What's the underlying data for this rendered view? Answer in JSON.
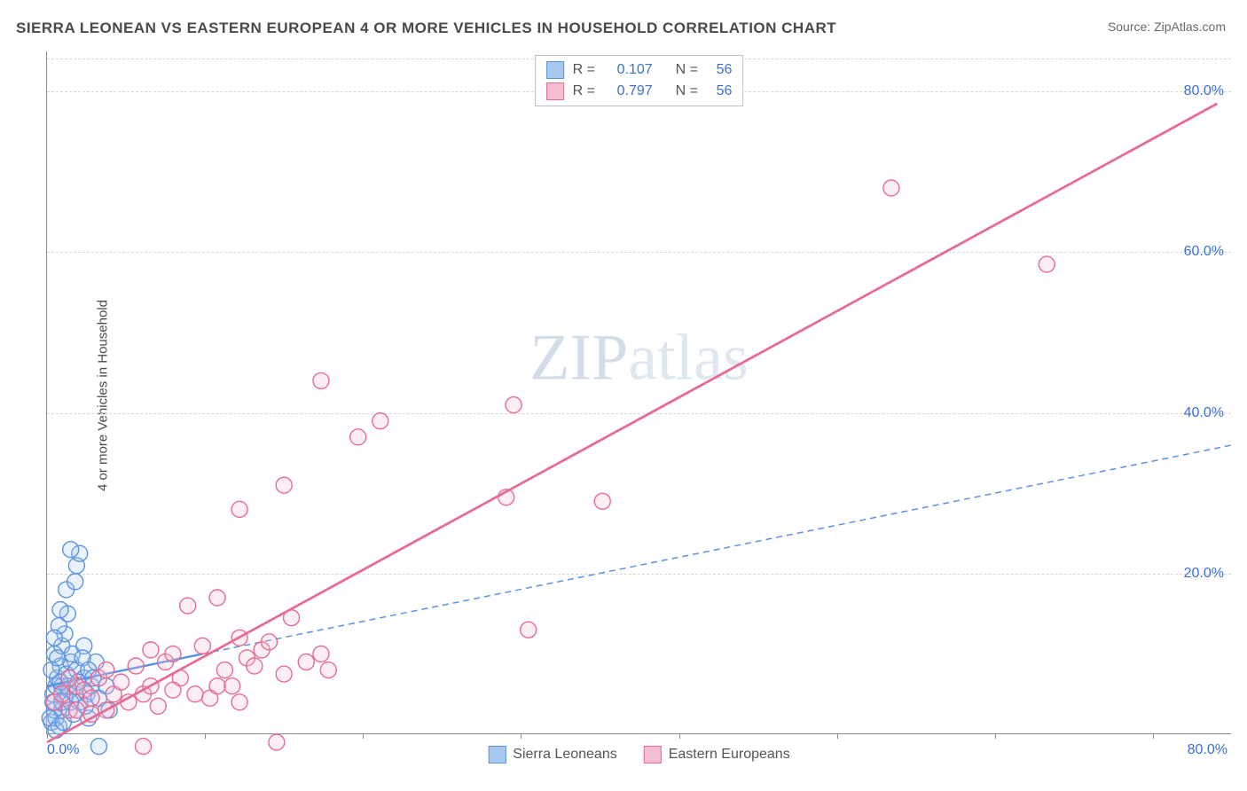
{
  "title": "SIERRA LEONEAN VS EASTERN EUROPEAN 4 OR MORE VEHICLES IN HOUSEHOLD CORRELATION CHART",
  "source_label": "Source:",
  "source_value": "ZipAtlas.com",
  "ylabel": "4 or more Vehicles in Household",
  "watermark_a": "ZIP",
  "watermark_b": "atlas",
  "chart": {
    "type": "scatter",
    "xlim": [
      0,
      80
    ],
    "ylim": [
      0,
      85
    ],
    "x_origin_label": "0.0%",
    "x_max_label": "80.0%",
    "y_ticks": [
      20,
      40,
      60,
      80
    ],
    "y_tick_labels": [
      "20.0%",
      "40.0%",
      "60.0%",
      "80.0%"
    ],
    "x_minor_ticks": [
      0,
      10.67,
      21.33,
      32,
      42.67,
      53.33,
      64,
      74.67
    ],
    "grid_color": "#d8d8d8",
    "axis_color": "#888888",
    "background_color": "#ffffff",
    "tick_label_color": "#3b6fd6",
    "title_color": "#4a4a4a",
    "title_fontsize": 17,
    "label_fontsize": 15,
    "tick_fontsize": 16,
    "marker_radius": 9,
    "marker_fill_opacity": 0.25,
    "marker_stroke_width": 1.4,
    "series": [
      {
        "name": "Sierra Leoneans",
        "color_stroke": "#5a93e0",
        "color_fill": "#a9c8f0",
        "r": 0.107,
        "n": 56,
        "trend": {
          "x1": 0,
          "y1": 6,
          "x2": 10.5,
          "y2": 10,
          "extend_x2": 80,
          "extend_y2": 36,
          "solid_width": 2.5,
          "dash_pattern": "7 5",
          "dash_width": 1.5
        },
        "points": [
          [
            0.3,
            1.5
          ],
          [
            0.6,
            2
          ],
          [
            0.5,
            3
          ],
          [
            0.8,
            1
          ],
          [
            0.4,
            5
          ],
          [
            0.6,
            6
          ],
          [
            1.0,
            3
          ],
          [
            1.2,
            4.5
          ],
          [
            0.7,
            7
          ],
          [
            0.9,
            8.5
          ],
          [
            1.0,
            6
          ],
          [
            1.5,
            5.5
          ],
          [
            1.3,
            7.5
          ],
          [
            1.6,
            9
          ],
          [
            0.5,
            10
          ],
          [
            1.0,
            11
          ],
          [
            1.2,
            12.5
          ],
          [
            0.8,
            13.5
          ],
          [
            1.4,
            15
          ],
          [
            0.9,
            15.5
          ],
          [
            1.3,
            18
          ],
          [
            1.9,
            19
          ],
          [
            2.0,
            21
          ],
          [
            2.2,
            22.5
          ],
          [
            1.6,
            23
          ],
          [
            1.7,
            10
          ],
          [
            2.0,
            8
          ],
          [
            2.5,
            7
          ],
          [
            2.7,
            5
          ],
          [
            3.0,
            6
          ],
          [
            3.3,
            9
          ],
          [
            3.5,
            4.5
          ],
          [
            4.0,
            6
          ],
          [
            4.2,
            3
          ],
          [
            2.8,
            2
          ],
          [
            0.4,
            4
          ],
          [
            0.2,
            2
          ],
          [
            0.6,
            0.5
          ],
          [
            1.1,
            1.5
          ],
          [
            1.8,
            2.5
          ],
          [
            2.2,
            4
          ],
          [
            2.5,
            11
          ],
          [
            0.3,
            8
          ],
          [
            0.7,
            9.5
          ],
          [
            1.0,
            4
          ],
          [
            1.4,
            6
          ],
          [
            1.6,
            4
          ],
          [
            1.9,
            5
          ],
          [
            2.1,
            6.5
          ],
          [
            2.4,
            9.5
          ],
          [
            2.6,
            3.5
          ],
          [
            2.8,
            8
          ],
          [
            3.1,
            7
          ],
          [
            0.5,
            12
          ],
          [
            0.9,
            6.5
          ],
          [
            3.5,
            -1.5
          ]
        ]
      },
      {
        "name": "Eastern Europeans",
        "color_stroke": "#e76b94",
        "color_fill": "#f6bdd0",
        "r": 0.797,
        "n": 56,
        "trend": {
          "x1": 0,
          "y1": -1,
          "x2": 79,
          "y2": 78.5,
          "solid_width": 2.8
        },
        "points": [
          [
            0.5,
            4
          ],
          [
            1.0,
            5
          ],
          [
            1.5,
            3
          ],
          [
            2.0,
            6
          ],
          [
            2.5,
            5.5
          ],
          [
            3.0,
            4.5
          ],
          [
            3.5,
            7
          ],
          [
            4.0,
            8
          ],
          [
            4.5,
            5
          ],
          [
            5.0,
            6.5
          ],
          [
            5.5,
            4
          ],
          [
            6.0,
            8.5
          ],
          [
            6.5,
            5
          ],
          [
            7.0,
            6
          ],
          [
            7.5,
            3.5
          ],
          [
            8.0,
            9
          ],
          [
            8.5,
            10
          ],
          [
            9.0,
            7
          ],
          [
            9.5,
            16
          ],
          [
            10.0,
            5
          ],
          [
            10.5,
            11
          ],
          [
            11.0,
            4.5
          ],
          [
            11.5,
            17
          ],
          [
            12.0,
            8
          ],
          [
            12.5,
            6
          ],
          [
            13.0,
            12
          ],
          [
            13.5,
            9.5
          ],
          [
            14.0,
            8.5
          ],
          [
            14.5,
            10.5
          ],
          [
            15.0,
            11.5
          ],
          [
            15.5,
            -1
          ],
          [
            16.0,
            7.5
          ],
          [
            16.5,
            14.5
          ],
          [
            17.5,
            9
          ],
          [
            18.5,
            10
          ],
          [
            19.0,
            8
          ],
          [
            13.0,
            28
          ],
          [
            16.0,
            31
          ],
          [
            21.0,
            37
          ],
          [
            22.5,
            39
          ],
          [
            18.5,
            44
          ],
          [
            31.0,
            29.5
          ],
          [
            31.5,
            41
          ],
          [
            37.5,
            29
          ],
          [
            32.5,
            13
          ],
          [
            57.0,
            68
          ],
          [
            67.5,
            58.5
          ],
          [
            2.0,
            3
          ],
          [
            3.0,
            2.5
          ],
          [
            4.0,
            3
          ],
          [
            6.5,
            -1.5
          ],
          [
            8.5,
            5.5
          ],
          [
            11.5,
            6
          ],
          [
            13.0,
            4
          ],
          [
            7.0,
            10.5
          ],
          [
            1.5,
            7
          ]
        ]
      }
    ]
  },
  "legend_top": {
    "r_label": "R  =",
    "n_label": "N  ="
  },
  "legend_bottom": [
    {
      "label": "Sierra Leoneans",
      "stroke": "#5a93e0",
      "fill": "#a9c8f0"
    },
    {
      "label": "Eastern Europeans",
      "stroke": "#e76b94",
      "fill": "#f6bdd0"
    }
  ]
}
